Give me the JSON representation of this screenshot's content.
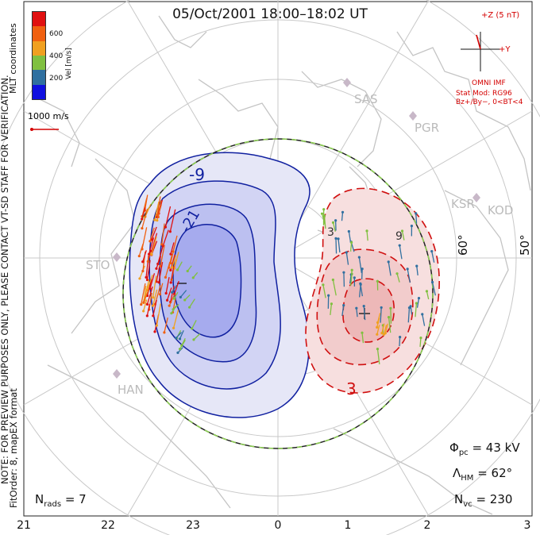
{
  "title": "05/Oct/2001 18:00–18:02 UT",
  "colors": {
    "positive_cell": "#d01010",
    "negative_cell": "#1020a0",
    "positive_fill": "#f5c0c0",
    "negative_fill": "#b8bcf0",
    "hmb": "#222222",
    "hmb_dash": "#8cd050"
  },
  "velocity_legend": {
    "unit_label": "Vel [m/s]",
    "ticks": [
      "600",
      "400",
      "200"
    ],
    "scale_colors": [
      "#e01010",
      "#f06010",
      "#f0a020",
      "#80c040",
      "#3070a0",
      "#1010e0"
    ],
    "reference_vector_label": "1000 m/s"
  },
  "coordinates_label": "MLT coordinates",
  "imf": {
    "z_label": "+Z (5 nT)",
    "y_label": "+Y",
    "source": "OMNI IMF",
    "stat_mod": "Stat Mod: RG96",
    "condition": "Bz+/By−, 0<BT<4"
  },
  "contours": {
    "negative_label": "-9",
    "negative_label_2": "-21",
    "positive_label": "3",
    "positive_label_2": "3",
    "positive_label_3": "9"
  },
  "latitude_labels": [
    "60°",
    "50°"
  ],
  "stations": [
    "SAS",
    "PGR",
    "KSR",
    "KOD",
    "STO",
    "HAN"
  ],
  "stats": {
    "phi_pc_symbol": "Φ",
    "phi_pc_sub": "pc",
    "phi_pc_value": "= 43 kV",
    "lambda_hm_symbol": "Λ",
    "lambda_hm_sub": "HM",
    "lambda_hm_value": "= 62°",
    "n_vc_symbol": "N",
    "n_vc_sub": "vc",
    "n_vc_value": "= 230",
    "n_rads_symbol": "N",
    "n_rads_sub": "rads",
    "n_rads_value": "= 7"
  },
  "note": "NOTE: FOR PREVIEW PURPOSES ONLY, PLEASE CONTACT VT-SD STAFF FOR VERIFICATION.",
  "fit_order": "FitOrder: 8, mapEX format",
  "mlt_ticks": [
    "21",
    "22",
    "23",
    "0",
    "1",
    "2",
    "3"
  ]
}
